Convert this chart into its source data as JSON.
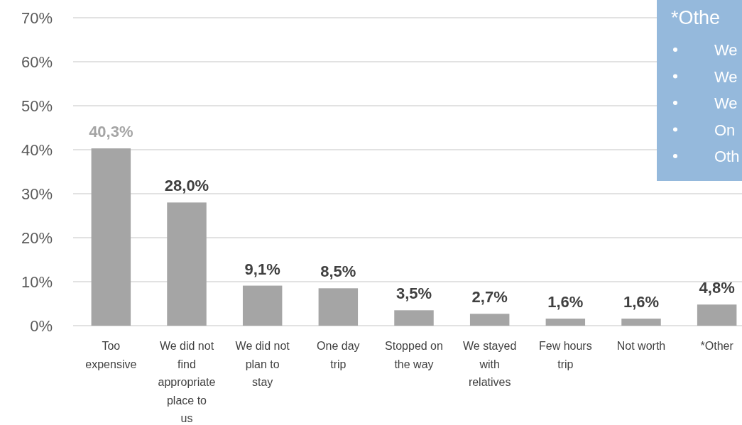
{
  "chart_data": {
    "type": "bar",
    "categories": [
      "Too expensive",
      "We did not find appropriate place to us",
      "We did not plan to stay",
      "One day trip",
      "Stopped on the way",
      "We stayed with relatives",
      "Few hours trip",
      "Not worth",
      "*Other"
    ],
    "values": [
      40.3,
      28.0,
      9.1,
      8.5,
      3.5,
      2.7,
      1.6,
      1.6,
      4.8
    ],
    "value_labels": [
      "40,3%",
      "28,0%",
      "9,1%",
      "8,5%",
      "3,5%",
      "2,7%",
      "1,6%",
      "1,6%",
      "4,8%"
    ],
    "color": "#a5a5a5",
    "ylim": [
      0,
      70
    ],
    "yticks": [
      {
        "value": 0,
        "label": "0%"
      },
      {
        "value": 10,
        "label": "10%"
      },
      {
        "value": 20,
        "label": "20%"
      },
      {
        "value": 30,
        "label": "30%"
      },
      {
        "value": 40,
        "label": "40%"
      },
      {
        "value": 50,
        "label": "50%"
      },
      {
        "value": 60,
        "label": "60%"
      },
      {
        "value": 70,
        "label": "70%"
      }
    ],
    "grid": "y",
    "annotations": [
      "*Othe",
      "We",
      "We",
      "We",
      "On",
      "Oth"
    ]
  }
}
